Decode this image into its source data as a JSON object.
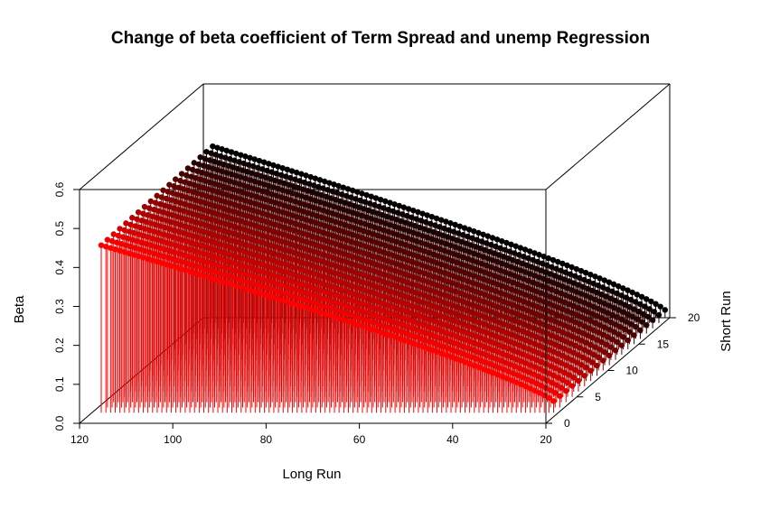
{
  "chart_data": {
    "type": "scatter3d",
    "title": "Change of beta coefficient of Term Spread and unemp Regression",
    "xlabel": "Long Run",
    "ylabel": "Short Run",
    "zlabel": "Beta",
    "xlim": [
      20,
      120
    ],
    "ylim": [
      0,
      20
    ],
    "zlim": [
      0,
      0.6
    ],
    "x_ticks": [
      120,
      100,
      80,
      60,
      40,
      20
    ],
    "y_ticks": [
      0,
      5,
      10,
      15,
      20
    ],
    "z_ticks": [
      0.0,
      0.1,
      0.2,
      0.3,
      0.4,
      0.5,
      0.6
    ],
    "x_tick_labels": [
      "120",
      "100",
      "80",
      "60",
      "40",
      "20"
    ],
    "y_tick_labels": [
      "0",
      "5",
      "10",
      "15",
      "20"
    ],
    "z_tick_labels": [
      "0.0",
      "0.1",
      "0.2",
      "0.3",
      "0.4",
      "0.5",
      "0.6"
    ],
    "long_run": {
      "start": 21,
      "end": 118,
      "step": 1
    },
    "short_run": {
      "start": 2,
      "end": 20,
      "step": 1
    },
    "series_colors": {
      "low_short_run": "#ff0000",
      "high_short_run": "#000000"
    },
    "surface": {
      "description_points": [
        {
          "short_run": 2,
          "long_run": 118,
          "beta": 0.43
        },
        {
          "short_run": 2,
          "long_run": 21,
          "beta": 0.03
        },
        {
          "short_run": 20,
          "long_run": 118,
          "beta": 0.44
        },
        {
          "short_run": 20,
          "long_run": 21,
          "beta": 0.02
        }
      ]
    },
    "grid": false,
    "legend": "none"
  }
}
